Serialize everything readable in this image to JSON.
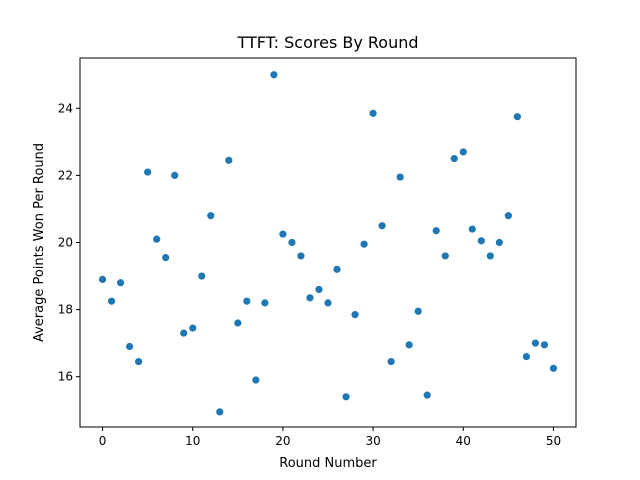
{
  "chart_data": {
    "type": "scatter",
    "title": "TTFT: Scores By Round",
    "xlabel": "Round Number",
    "ylabel": "Average Points Won Per Round",
    "xlim": [
      -2.5,
      52.5
    ],
    "ylim": [
      14.5,
      25.5
    ],
    "xticks": [
      0,
      10,
      20,
      30,
      40,
      50
    ],
    "yticks": [
      16,
      18,
      20,
      22,
      24
    ],
    "grid": false,
    "color": "#1f77b4",
    "x": [
      0,
      1,
      2,
      3,
      4,
      5,
      6,
      7,
      8,
      9,
      10,
      11,
      12,
      13,
      14,
      15,
      16,
      17,
      18,
      19,
      20,
      21,
      22,
      23,
      24,
      25,
      26,
      27,
      28,
      29,
      30,
      31,
      32,
      33,
      34,
      35,
      36,
      37,
      38,
      39,
      40,
      41,
      42,
      43,
      44,
      45,
      46,
      47,
      48,
      49,
      50
    ],
    "y": [
      18.9,
      18.25,
      18.8,
      16.9,
      16.45,
      22.1,
      20.1,
      19.55,
      22.0,
      17.3,
      17.45,
      19.0,
      20.8,
      14.95,
      22.45,
      17.6,
      18.25,
      15.9,
      18.2,
      25.0,
      20.25,
      20.0,
      19.6,
      18.35,
      18.6,
      18.2,
      19.2,
      15.4,
      17.85,
      19.95,
      23.85,
      20.5,
      16.45,
      21.95,
      16.95,
      17.95,
      15.45,
      20.35,
      19.6,
      22.5,
      22.7,
      20.4,
      20.05,
      19.6,
      20.0,
      20.8,
      23.75,
      16.6,
      17.0,
      16.95,
      16.25
    ]
  }
}
